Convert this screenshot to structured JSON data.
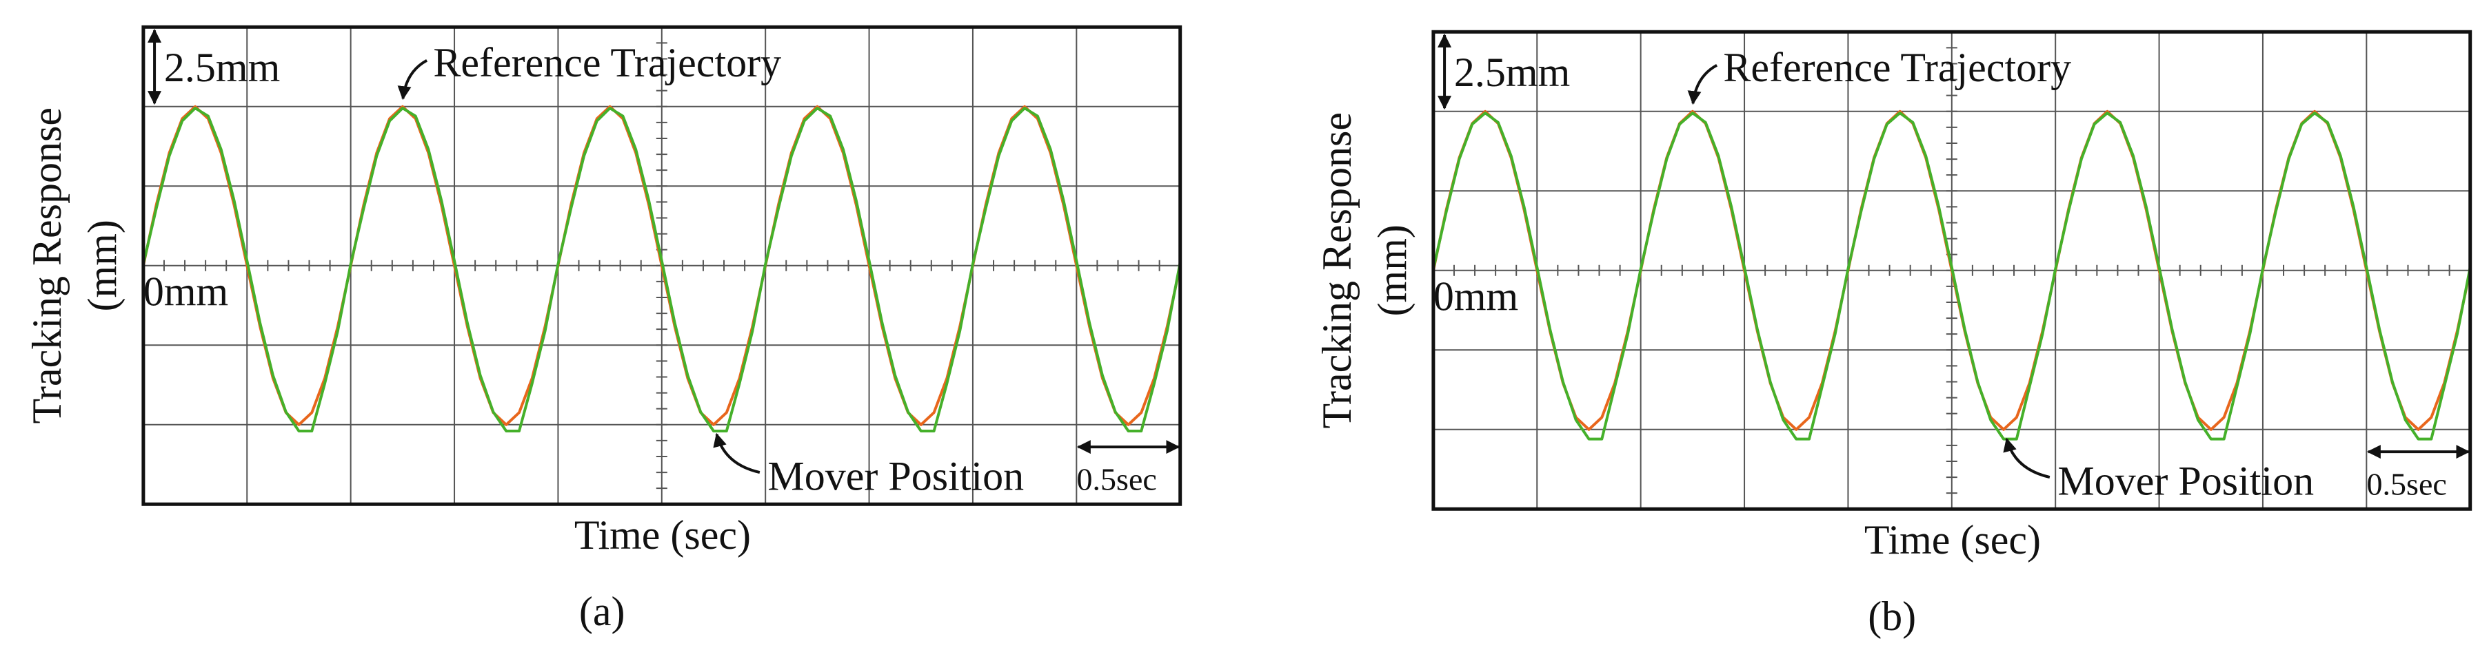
{
  "chart_data": [
    {
      "type": "line",
      "ylabel": [
        "Tracking Response",
        "(mm)"
      ],
      "xlabel": "Time (sec)",
      "caption": "(a)",
      "scale_y_label": "2.5mm",
      "zero_label": "0mm",
      "scale_x_label": "0.5sec",
      "xlim": [
        0,
        5
      ],
      "ylim": [
        -7.5,
        7.5
      ],
      "xticks": [
        0,
        0.5,
        1,
        1.5,
        2,
        2.5,
        3,
        3.5,
        4,
        4.5,
        5
      ],
      "yticks": [
        -7.5,
        -5,
        -2.5,
        0,
        2.5,
        5,
        7.5
      ],
      "grid": true,
      "x": [
        0,
        0.0625,
        0.125,
        0.1875,
        0.25,
        0.3125,
        0.375,
        0.4375,
        0.5,
        0.5625,
        0.625,
        0.6875,
        0.75,
        0.8125,
        0.875,
        0.9375,
        1,
        1.0625,
        1.125,
        1.1875,
        1.25,
        1.3125,
        1.375,
        1.4375,
        1.5,
        1.5625,
        1.625,
        1.6875,
        1.75,
        1.8125,
        1.875,
        1.9375,
        2,
        2.0625,
        2.125,
        2.1875,
        2.25,
        2.3125,
        2.375,
        2.4375,
        2.5,
        2.5625,
        2.625,
        2.6875,
        2.75,
        2.8125,
        2.875,
        2.9375,
        3,
        3.0625,
        3.125,
        3.1875,
        3.25,
        3.3125,
        3.375,
        3.4375,
        3.5,
        3.5625,
        3.625,
        3.6875,
        3.75,
        3.8125,
        3.875,
        3.9375,
        4,
        4.0625,
        4.125,
        4.1875,
        4.25,
        4.3125,
        4.375,
        4.4375,
        4.5,
        4.5625,
        4.625,
        4.6875,
        4.75,
        4.8125,
        4.875,
        4.9375,
        5
      ],
      "series": [
        {
          "name": "Reference Trajectory",
          "color": "#e8661c",
          "values": [
            0,
            1.91,
            3.54,
            4.62,
            5,
            4.62,
            3.54,
            1.91,
            0,
            -1.91,
            -3.54,
            -4.62,
            -5,
            -4.62,
            -3.54,
            -1.91,
            0,
            1.91,
            3.54,
            4.62,
            5,
            4.62,
            3.54,
            1.91,
            0,
            -1.91,
            -3.54,
            -4.62,
            -5,
            -4.62,
            -3.54,
            -1.91,
            0,
            1.91,
            3.54,
            4.62,
            5,
            4.62,
            3.54,
            1.91,
            0,
            -1.91,
            -3.54,
            -4.62,
            -5,
            -4.62,
            -3.54,
            -1.91,
            0,
            1.91,
            3.54,
            4.62,
            5,
            4.62,
            3.54,
            1.91,
            0,
            -1.91,
            -3.54,
            -4.62,
            -5,
            -4.62,
            -3.54,
            -1.91,
            0,
            1.91,
            3.54,
            4.62,
            5,
            4.62,
            3.54,
            1.91,
            0,
            -1.91,
            -3.54,
            -4.62,
            -5,
            -4.62,
            -3.54,
            -1.91,
            0
          ]
        },
        {
          "name": "Mover Position",
          "color": "#45b02a",
          "values": [
            0.05,
            1.8,
            3.45,
            4.55,
            4.95,
            4.7,
            3.65,
            2.05,
            0.15,
            -1.8,
            -3.45,
            -4.6,
            -5.2,
            -5.2,
            -3.7,
            -2.05,
            0.05,
            1.8,
            3.45,
            4.55,
            4.95,
            4.7,
            3.65,
            2.05,
            0.15,
            -1.8,
            -3.45,
            -4.6,
            -5.2,
            -5.2,
            -3.7,
            -2.05,
            0.05,
            1.8,
            3.45,
            4.55,
            4.95,
            4.7,
            3.65,
            2.05,
            0.15,
            -1.8,
            -3.45,
            -4.6,
            -5.2,
            -5.2,
            -3.7,
            -2.05,
            0.05,
            1.8,
            3.45,
            4.55,
            4.95,
            4.7,
            3.65,
            2.05,
            0.15,
            -1.8,
            -3.45,
            -4.6,
            -5.2,
            -5.2,
            -3.7,
            -2.05,
            0.05,
            1.8,
            3.45,
            4.55,
            4.95,
            4.7,
            3.65,
            2.05,
            0.15,
            -1.8,
            -3.45,
            -4.6,
            -5.2,
            -5.2,
            -3.7,
            -2.05,
            0.1
          ]
        }
      ]
    },
    {
      "type": "line",
      "ylabel": [
        "Tracking Response",
        "(mm)"
      ],
      "xlabel": "Time (sec)",
      "caption": "(b)",
      "scale_y_label": "2.5mm",
      "zero_label": "0mm",
      "scale_x_label": "0.5sec",
      "xlim": [
        0,
        5
      ],
      "ylim": [
        -7.5,
        7.5
      ],
      "xticks": [
        0,
        0.5,
        1,
        1.5,
        2,
        2.5,
        3,
        3.5,
        4,
        4.5,
        5
      ],
      "yticks": [
        -7.5,
        -5,
        -2.5,
        0,
        2.5,
        5,
        7.5
      ],
      "grid": true,
      "x": [
        0,
        0.0625,
        0.125,
        0.1875,
        0.25,
        0.3125,
        0.375,
        0.4375,
        0.5,
        0.5625,
        0.625,
        0.6875,
        0.75,
        0.8125,
        0.875,
        0.9375,
        1,
        1.0625,
        1.125,
        1.1875,
        1.25,
        1.3125,
        1.375,
        1.4375,
        1.5,
        1.5625,
        1.625,
        1.6875,
        1.75,
        1.8125,
        1.875,
        1.9375,
        2,
        2.0625,
        2.125,
        2.1875,
        2.25,
        2.3125,
        2.375,
        2.4375,
        2.5,
        2.5625,
        2.625,
        2.6875,
        2.75,
        2.8125,
        2.875,
        2.9375,
        3,
        3.0625,
        3.125,
        3.1875,
        3.25,
        3.3125,
        3.375,
        3.4375,
        3.5,
        3.5625,
        3.625,
        3.6875,
        3.75,
        3.8125,
        3.875,
        3.9375,
        4,
        4.0625,
        4.125,
        4.1875,
        4.25,
        4.3125,
        4.375,
        4.4375,
        4.5,
        4.5625,
        4.625,
        4.6875,
        4.75,
        4.8125,
        4.875,
        4.9375,
        5
      ],
      "series": [
        {
          "name": "Reference Trajectory",
          "color": "#e8661c",
          "values": [
            0,
            1.91,
            3.54,
            4.62,
            5,
            4.62,
            3.54,
            1.91,
            0,
            -1.91,
            -3.54,
            -4.62,
            -5,
            -4.62,
            -3.54,
            -1.91,
            0,
            1.91,
            3.54,
            4.62,
            5,
            4.62,
            3.54,
            1.91,
            0,
            -1.91,
            -3.54,
            -4.62,
            -5,
            -4.62,
            -3.54,
            -1.91,
            0,
            1.91,
            3.54,
            4.62,
            5,
            4.62,
            3.54,
            1.91,
            0,
            -1.91,
            -3.54,
            -4.62,
            -5,
            -4.62,
            -3.54,
            -1.91,
            0,
            1.91,
            3.54,
            4.62,
            5,
            4.62,
            3.54,
            1.91,
            0,
            -1.91,
            -3.54,
            -4.62,
            -5,
            -4.62,
            -3.54,
            -1.91,
            0,
            1.91,
            3.54,
            4.62,
            5,
            4.62,
            3.54,
            1.91,
            0,
            -1.91,
            -3.54,
            -4.62,
            -5,
            -4.62,
            -3.54,
            -1.91,
            0
          ]
        },
        {
          "name": "Mover Position",
          "color": "#45b02a",
          "values": [
            0.05,
            1.85,
            3.5,
            4.6,
            4.95,
            4.65,
            3.6,
            2,
            0.1,
            -1.85,
            -3.5,
            -4.7,
            -5.3,
            -5.3,
            -3.65,
            -2,
            0.05,
            1.85,
            3.5,
            4.6,
            4.95,
            4.65,
            3.6,
            2,
            0.1,
            -1.85,
            -3.5,
            -4.7,
            -5.3,
            -5.3,
            -3.65,
            -2,
            0.05,
            1.85,
            3.5,
            4.6,
            4.95,
            4.65,
            3.6,
            2,
            0.1,
            -1.85,
            -3.5,
            -4.7,
            -5.3,
            -5.3,
            -3.65,
            -2,
            0.05,
            1.85,
            3.5,
            4.6,
            4.95,
            4.65,
            3.6,
            2,
            0.1,
            -1.85,
            -3.5,
            -4.7,
            -5.3,
            -5.3,
            -3.65,
            -2,
            0.05,
            1.85,
            3.5,
            4.6,
            4.95,
            4.65,
            3.6,
            2,
            0.1,
            -1.85,
            -3.5,
            -4.7,
            -5.3,
            -5.3,
            -3.65,
            -2,
            0.1
          ]
        }
      ]
    }
  ]
}
